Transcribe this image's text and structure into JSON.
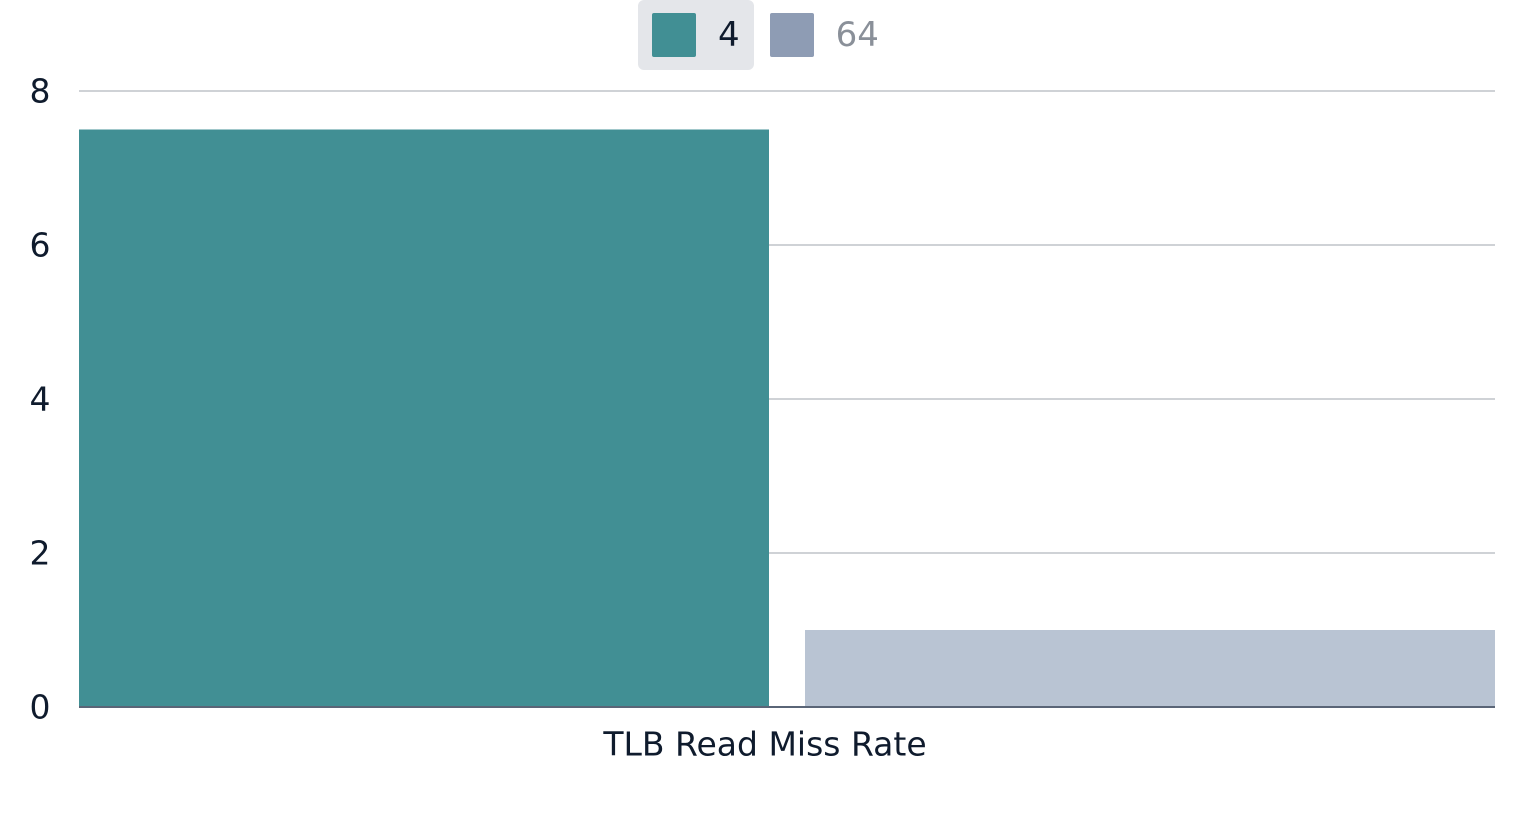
{
  "chart_data": {
    "type": "bar",
    "categories": [
      "TLB Read Miss Rate"
    ],
    "series": [
      {
        "name": "4",
        "values": [
          7.5
        ],
        "color": "#418f94",
        "active": true
      },
      {
        "name": "64",
        "values": [
          1
        ],
        "color": "#b9c4d3",
        "legend_color": "#8e9cb4",
        "active": false
      }
    ],
    "ylim": [
      0,
      8
    ],
    "yticks": [
      "0",
      "2",
      "4",
      "6",
      "8"
    ],
    "grid": true,
    "legend_position": "top-center",
    "xlabel": "",
    "ylabel": ""
  }
}
